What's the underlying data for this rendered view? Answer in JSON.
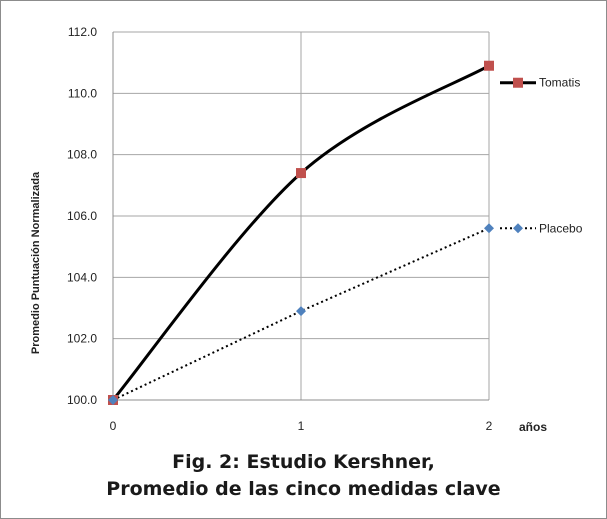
{
  "chart_data": {
    "type": "line",
    "x": [
      0,
      1,
      2
    ],
    "xlim": [
      0,
      2
    ],
    "xticks": [
      "0",
      "1",
      "2"
    ],
    "xlabel": "años",
    "ylabel": "Promedio Puntuación Normalizada",
    "ylim": [
      100.0,
      112.0
    ],
    "yticks": [
      "100.0",
      "102.0",
      "104.0",
      "106.0",
      "108.0",
      "110.0",
      "112.0"
    ],
    "grid": true,
    "legend": "right, next to line ends",
    "series": [
      {
        "name": "Tomatis",
        "values": [
          100.0,
          107.4,
          110.9
        ],
        "color": "#000000",
        "marker": "square",
        "marker_color": "#c0504d",
        "line_style": "solid"
      },
      {
        "name": "Placebo",
        "values": [
          100.0,
          102.9,
          105.6
        ],
        "color": "#000000",
        "marker": "diamond",
        "marker_color": "#4f81bd",
        "line_style": "dotted"
      }
    ],
    "caption_line1": "Fig. 2: Estudio Kershner,",
    "caption_line2": "Promedio de las cinco medidas clave"
  }
}
